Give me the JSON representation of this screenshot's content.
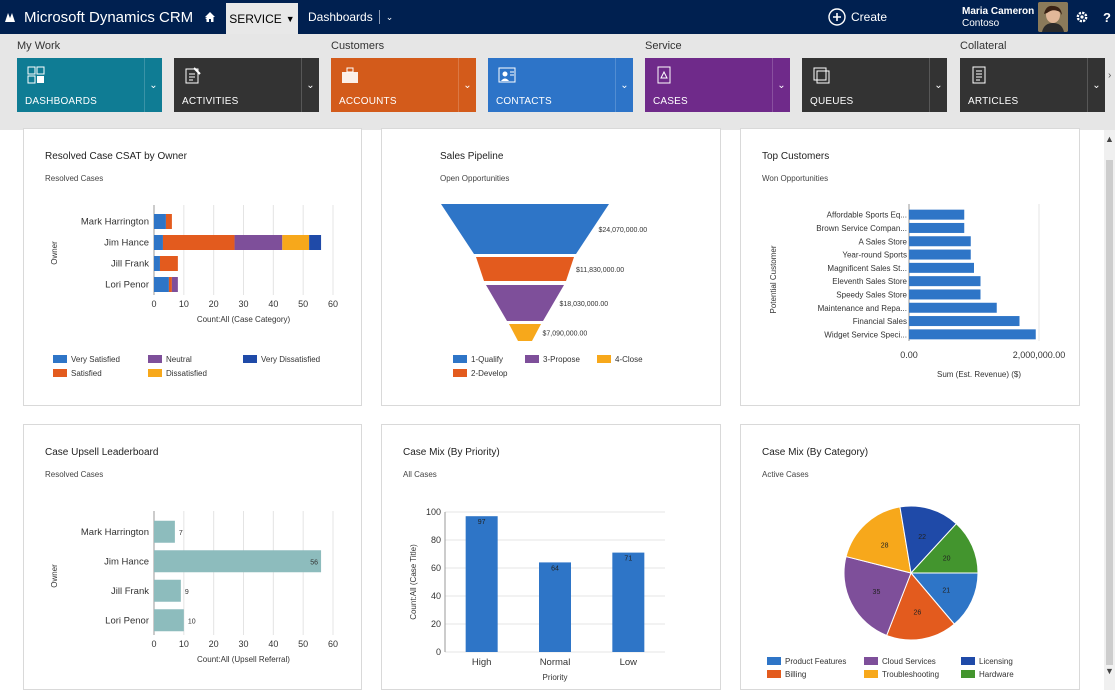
{
  "nav": {
    "app_title": "Microsoft Dynamics CRM",
    "service_tab": "SERVICE",
    "dashboards_tab": "Dashboards",
    "create_label": "Create",
    "user_name": "Maria Cameron",
    "user_org": "Contoso",
    "help_label": "?"
  },
  "groups": [
    "My Work",
    "Customers",
    "Service",
    "Collateral"
  ],
  "tiles": [
    {
      "label": "DASHBOARDS",
      "color": "#0f7c94",
      "icon": "dashboard-icon"
    },
    {
      "label": "ACTIVITIES",
      "color": "#333333",
      "icon": "activities-icon"
    },
    {
      "label": "ACCOUNTS",
      "color": "#d35b1b",
      "icon": "accounts-icon"
    },
    {
      "label": "CONTACTS",
      "color": "#2d74c8",
      "icon": "contacts-icon"
    },
    {
      "label": "CASES",
      "color": "#6f2a8a",
      "icon": "cases-icon"
    },
    {
      "label": "QUEUES",
      "color": "#333333",
      "icon": "queues-icon"
    },
    {
      "label": "ARTICLES",
      "color": "#333333",
      "icon": "articles-icon"
    }
  ],
  "cards": {
    "csat": {
      "title": "Resolved Case CSAT by Owner",
      "subtitle": "Resolved Cases"
    },
    "pipeline": {
      "title": "Sales Pipeline",
      "subtitle": "Open Opportunities"
    },
    "topcust": {
      "title": "Top Customers",
      "subtitle": "Won Opportunities"
    },
    "upsell": {
      "title": "Case Upsell Leaderboard",
      "subtitle": "Resolved Cases"
    },
    "priority": {
      "title": "Case Mix (By Priority)",
      "subtitle": "All Cases"
    },
    "category": {
      "title": "Case Mix (By Category)",
      "subtitle": "Active Cases"
    }
  },
  "chart_data": [
    {
      "id": "csat",
      "type": "bar",
      "orientation": "horizontal",
      "stacked": true,
      "categories": [
        "Mark Harrington",
        "Jim Hance",
        "Jill Frank",
        "Lori Penor"
      ],
      "series": [
        {
          "name": "Very Satisfied",
          "color": "#2e75c7",
          "values": [
            4,
            3,
            2,
            5
          ]
        },
        {
          "name": "Satisfied",
          "color": "#e35b1e",
          "values": [
            2,
            24,
            6,
            1
          ]
        },
        {
          "name": "Neutral",
          "color": "#7e4f9a",
          "values": [
            0,
            16,
            0,
            2
          ]
        },
        {
          "name": "Dissatisfied",
          "color": "#f7a81b",
          "values": [
            0,
            9,
            0,
            0
          ]
        },
        {
          "name": "Very Dissatisfied",
          "color": "#1f4aa8",
          "values": [
            0,
            4,
            0,
            0
          ]
        }
      ],
      "xlabel": "Count:All (Case Category)",
      "ylabel": "Owner",
      "xticks": [
        "0",
        "10",
        "20",
        "30",
        "40",
        "50",
        "60"
      ],
      "xlim": [
        0,
        60
      ],
      "legend": "bottom"
    },
    {
      "id": "pipeline",
      "type": "funnel",
      "stages": [
        {
          "name": "1-Qualify",
          "value": 24070000,
          "label": "$24,070,000.00",
          "color": "#2e75c7"
        },
        {
          "name": "2-Develop",
          "value": 11830000,
          "label": "$11,830,000.00",
          "color": "#e35b1e"
        },
        {
          "name": "3-Propose",
          "value": 18030000,
          "label": "$18,030,000.00",
          "color": "#7e4f9a"
        },
        {
          "name": "4-Close",
          "value": 7090000,
          "label": "$7,090,000.00",
          "color": "#f7a81b"
        }
      ],
      "legend_order": [
        "1-Qualify",
        "3-Propose",
        "4-Close",
        "2-Develop"
      ],
      "legend": "bottom"
    },
    {
      "id": "topcust",
      "type": "bar",
      "orientation": "horizontal",
      "categories": [
        "Affordable Sports Eq...",
        "Brown Service Compan...",
        "A Sales Store",
        "Year-round Sports",
        "Magnificent Sales St...",
        "Eleventh Sales Store",
        "Speedy Sales Store",
        "Maintenance and Repa...",
        "Financial Sales",
        "Widget Service Speci..."
      ],
      "values": [
        850000,
        850000,
        950000,
        950000,
        1000000,
        1100000,
        1100000,
        1350000,
        1700000,
        1950000
      ],
      "color": "#2e75c7",
      "xlabel": "Sum (Est. Revenue) ($)",
      "ylabel": "Potential Customer",
      "xticks": [
        "0.00",
        "2,000,000.00"
      ],
      "xlim": [
        0,
        2000000
      ]
    },
    {
      "id": "upsell",
      "type": "bar",
      "orientation": "horizontal",
      "categories": [
        "Mark Harrington",
        "Jim Hance",
        "Jill Frank",
        "Lori Penor"
      ],
      "values": [
        7,
        56,
        9,
        10
      ],
      "color": "#8dbcbd",
      "xlabel": "Count:All (Upsell Referral)",
      "ylabel": "Owner",
      "xticks": [
        "0",
        "10",
        "20",
        "30",
        "40",
        "50",
        "60"
      ],
      "xlim": [
        0,
        60
      ]
    },
    {
      "id": "priority",
      "type": "bar",
      "categories": [
        "High",
        "Normal",
        "Low"
      ],
      "values": [
        97,
        64,
        71
      ],
      "color": "#2e75c7",
      "xlabel": "Priority",
      "ylabel": "Count:All (Case Title)",
      "yticks": [
        "0",
        "20",
        "40",
        "60",
        "80",
        "100"
      ],
      "ylim": [
        0,
        100
      ]
    },
    {
      "id": "category",
      "type": "pie",
      "slices": [
        {
          "name": "Product Features",
          "value": 21,
          "color": "#2e75c7"
        },
        {
          "name": "Billing",
          "value": 26,
          "color": "#e35b1e"
        },
        {
          "name": "Cloud Services",
          "value": 35,
          "color": "#7e4f9a"
        },
        {
          "name": "Troubleshooting",
          "value": 28,
          "color": "#f7a81b"
        },
        {
          "name": "Licensing",
          "value": 22,
          "color": "#1f4aa8"
        },
        {
          "name": "Hardware",
          "value": 20,
          "color": "#43952e"
        }
      ],
      "legend_order": [
        "Product Features",
        "Cloud Services",
        "Licensing",
        "Billing",
        "Troubleshooting",
        "Hardware"
      ],
      "legend": "bottom"
    }
  ]
}
